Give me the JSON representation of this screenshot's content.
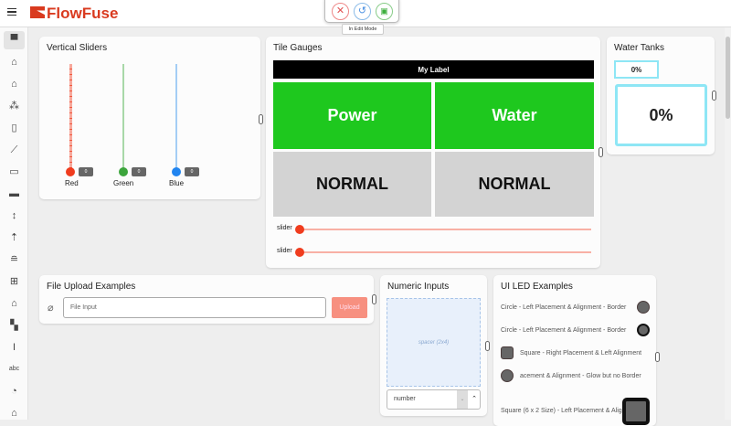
{
  "header": {
    "brand": "FlowFuse",
    "menu_icon": "hamburger-icon",
    "edit_tooltip": "In Edit Mode",
    "edit_buttons": [
      {
        "icon": "close-icon",
        "color": "#e05050"
      },
      {
        "icon": "undo-icon",
        "color": "#4a90e2"
      },
      {
        "icon": "save-icon",
        "color": "#3cae3c"
      }
    ],
    "brand_color": "#d93a1f"
  },
  "sidebar": {
    "items": [
      "chat-icon",
      "home-icon",
      "home-icon",
      "group-icon",
      "notebook-icon",
      "chart-icon",
      "video-icon",
      "image-icon",
      "sort-icon",
      "upload-icon",
      "database-icon",
      "table-icon",
      "home-icon",
      "dashboard-icon",
      "text-cursor-icon",
      "abc-icon",
      "gauge-icon",
      "home-icon"
    ]
  },
  "vertical_sliders": {
    "title": "Vertical Sliders",
    "sliders": [
      {
        "label": "Red",
        "value": "0",
        "color": "#f03c1e"
      },
      {
        "label": "Green",
        "value": "0",
        "color": "#3ca53c"
      },
      {
        "label": "Blue",
        "value": "0",
        "color": "#2185f0"
      }
    ]
  },
  "tile_gauges": {
    "title": "Tile Gauges",
    "label": "My Label",
    "tiles": [
      {
        "text": "Power",
        "color": "#1ec81e"
      },
      {
        "text": "Water",
        "color": "#1ec81e"
      },
      {
        "text": "NORMAL",
        "color": "#d3d3d3"
      },
      {
        "text": "NORMAL",
        "color": "#d3d3d3"
      }
    ],
    "sliders": [
      {
        "label": "slider",
        "value": 0
      },
      {
        "label": "slider",
        "value": 0
      }
    ]
  },
  "water_tanks": {
    "title": "Water Tanks",
    "small_value": "0%",
    "big_value": "0%"
  },
  "file_upload": {
    "title": "File Upload Examples",
    "placeholder": "File Input",
    "button": "Upload"
  },
  "numeric_inputs": {
    "title": "Numeric Inputs",
    "spacer": "spacer (2x4)",
    "input_value": "number"
  },
  "led": {
    "title": "UI LED Examples",
    "rows": [
      "Circle - Left Placement & Alignment - Border",
      "Circle - Left Placement & Alignment - Border",
      "Square - Right Placement & Left Alignment",
      "acement & Alignment - Glow but no Border",
      "Square (6 x 2 Size) - Left Placement & Alignment"
    ]
  }
}
